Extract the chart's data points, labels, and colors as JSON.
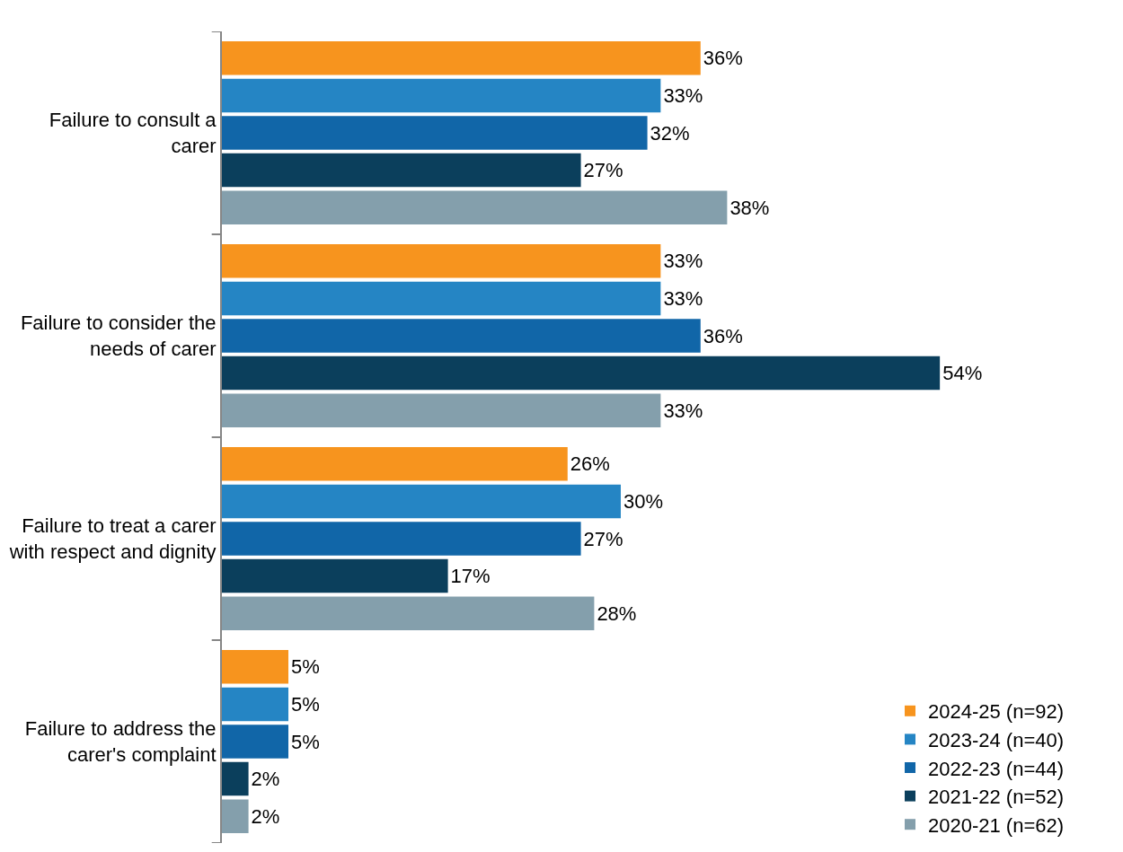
{
  "chart_data": {
    "type": "bar",
    "orientation": "horizontal",
    "categories": [
      "Failure to consult a carer",
      "Failure to consider the needs of carer",
      "Failure to treat a carer with respect and dignity",
      "Failure to address the carer's complaint"
    ],
    "series": [
      {
        "name": "2024-25 (n=92)",
        "color": "#f7941e",
        "values": [
          36,
          33,
          26,
          5
        ],
        "value_labels": [
          "36%",
          "33%",
          "26%",
          "5%"
        ]
      },
      {
        "name": "2023-24 (n=40)",
        "color": "#2585c4",
        "values": [
          33,
          33,
          30,
          5
        ],
        "value_labels": [
          "33%",
          "33%",
          "30%",
          "5%"
        ]
      },
      {
        "name": "2022-23 (n=44)",
        "color": "#1166a8",
        "values": [
          32,
          36,
          27,
          5
        ],
        "value_labels": [
          "32%",
          "36%",
          "27%",
          "5%"
        ]
      },
      {
        "name": "2021-22 (n=52)",
        "color": "#0b3f5c",
        "values": [
          27,
          54,
          17,
          2
        ],
        "value_labels": [
          "27%",
          "54%",
          "17%",
          "2%"
        ]
      },
      {
        "name": "2020-21 (n=62)",
        "color": "#849fac",
        "values": [
          38,
          33,
          28,
          2
        ],
        "value_labels": [
          "38%",
          "33%",
          "28%",
          "2%"
        ]
      }
    ],
    "legend": "bottom right"
  }
}
